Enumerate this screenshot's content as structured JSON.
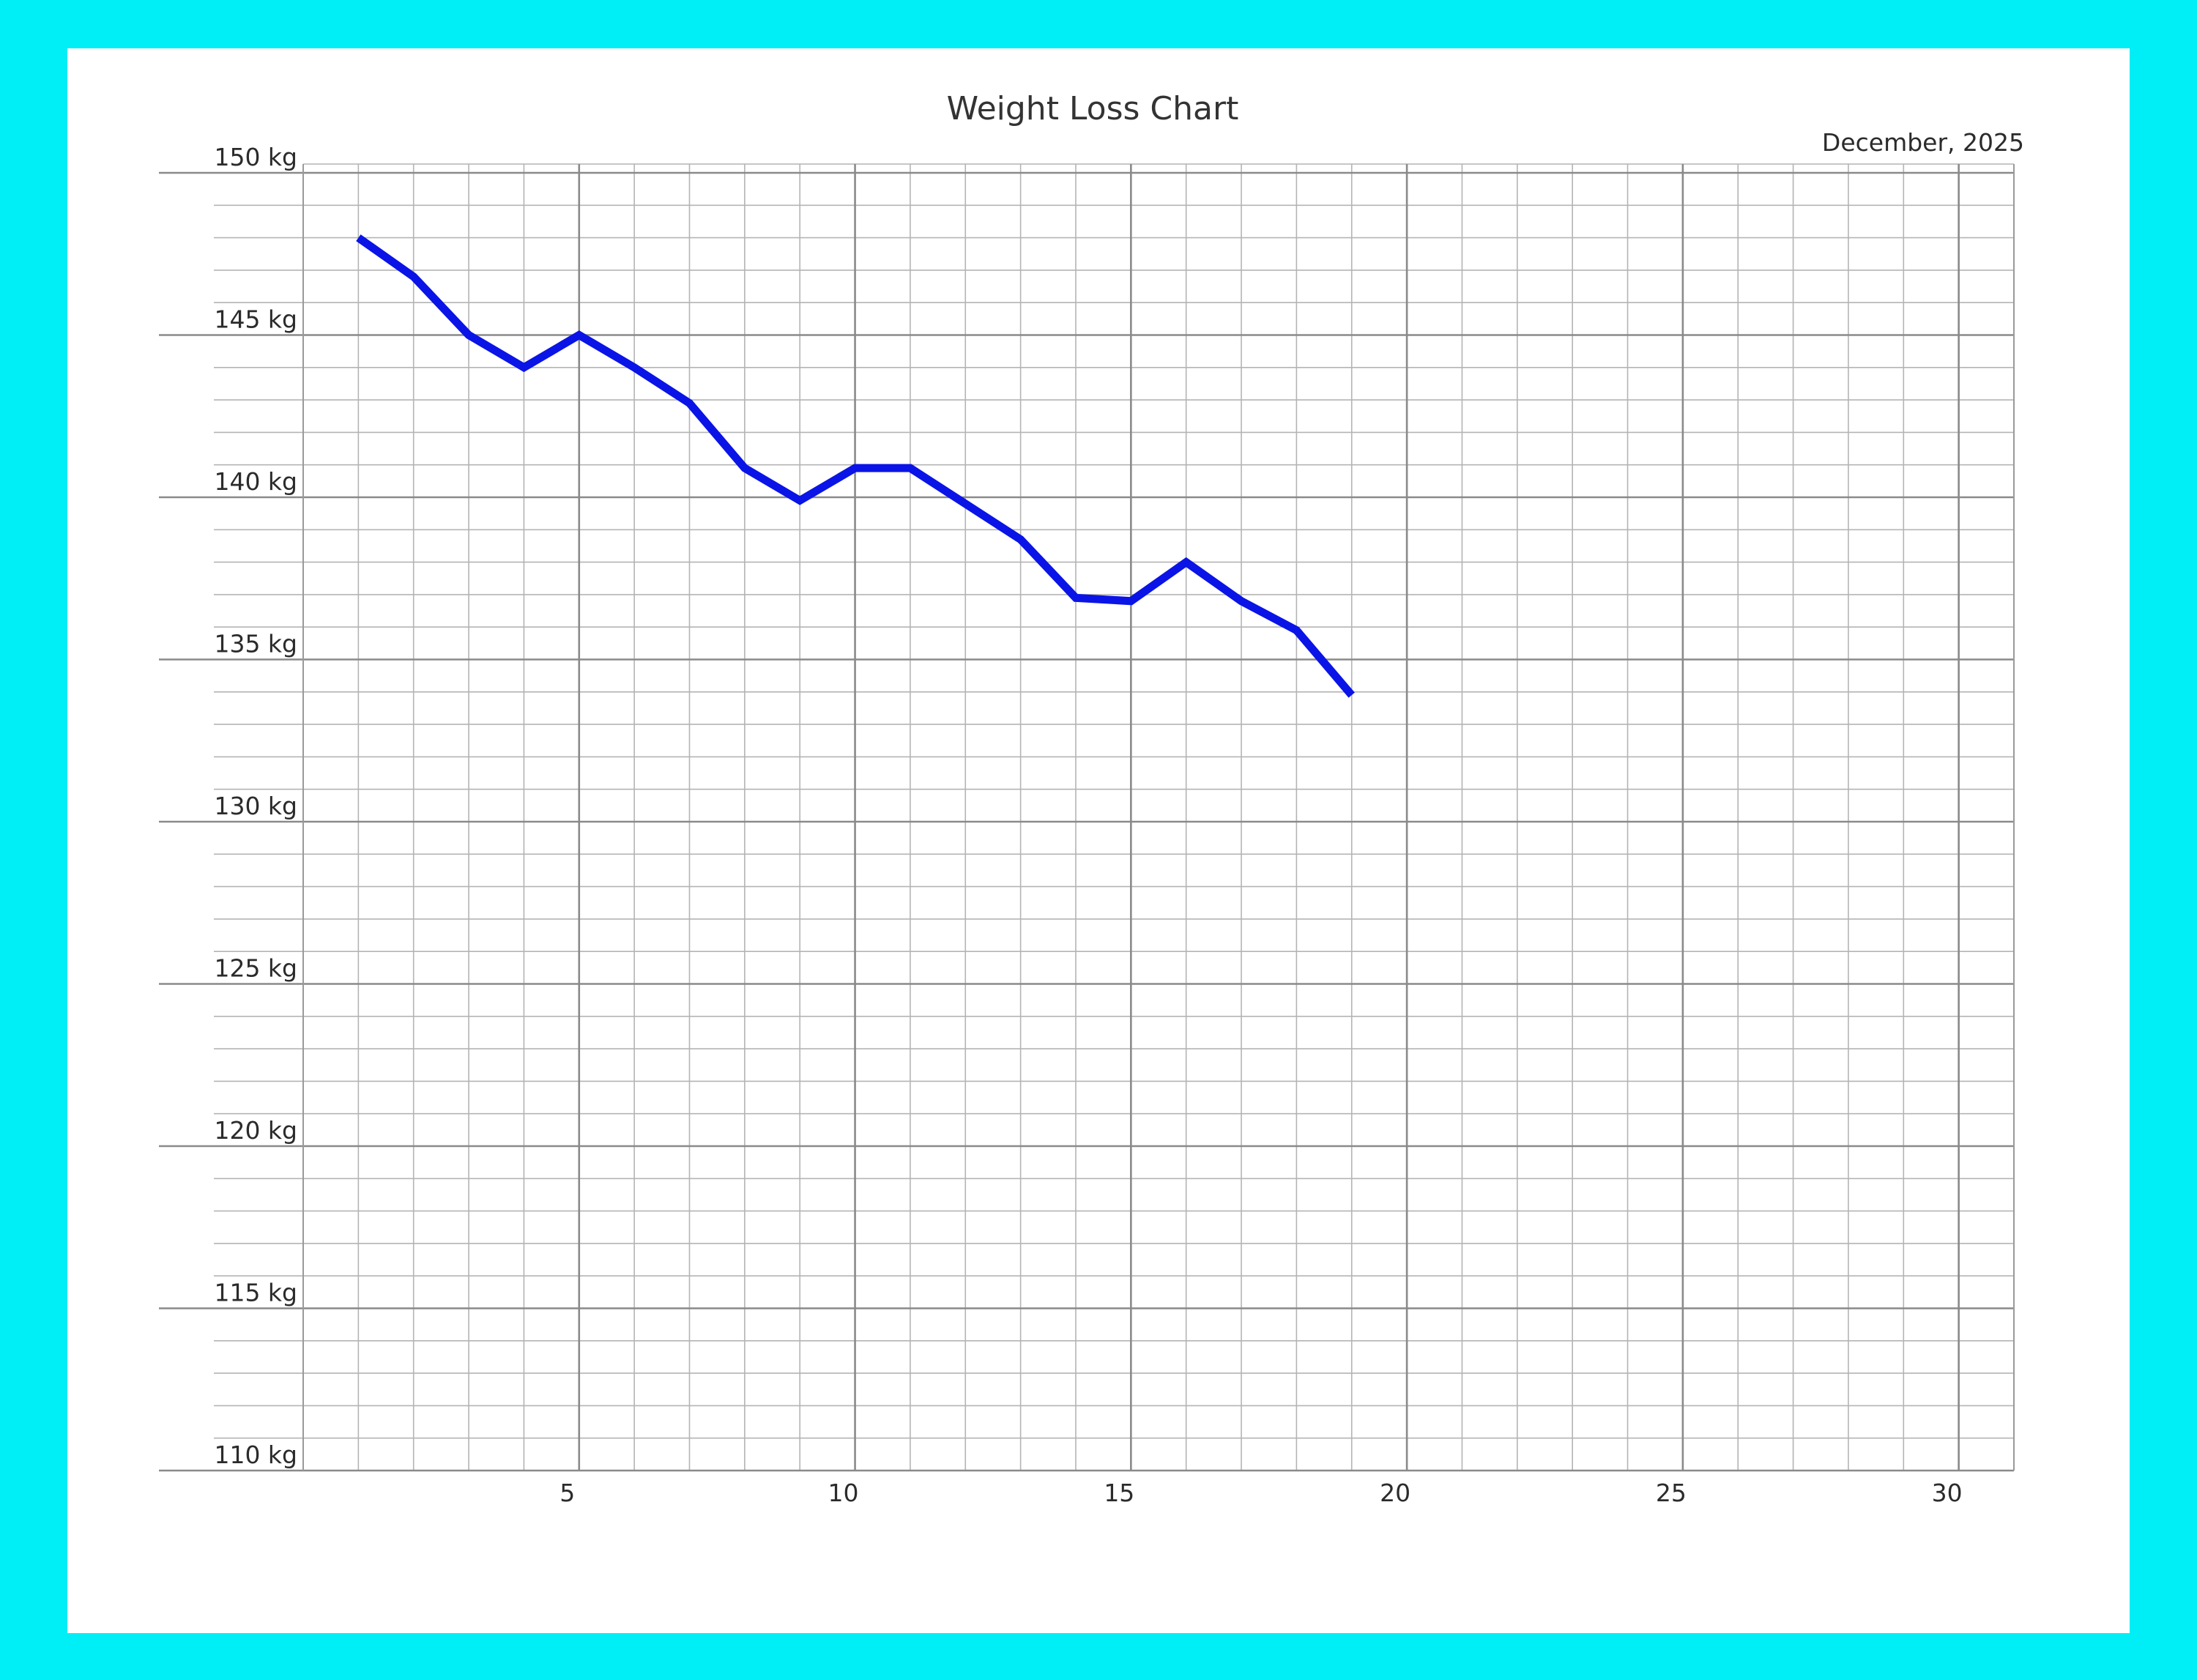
{
  "chart_data": {
    "type": "line",
    "title": "Weight Loss Chart",
    "subtitle": "December, 2025",
    "xlabel": "",
    "ylabel": "",
    "xlim": [
      0,
      31
    ],
    "ylim": [
      110,
      150
    ],
    "x_ticks": [
      {
        "value": 5,
        "label": "5"
      },
      {
        "value": 10,
        "label": "10"
      },
      {
        "value": 15,
        "label": "15"
      },
      {
        "value": 20,
        "label": "20"
      },
      {
        "value": 25,
        "label": "25"
      },
      {
        "value": 30,
        "label": "30"
      }
    ],
    "y_ticks": [
      {
        "value": 150,
        "label": "150 kg"
      },
      {
        "value": 145,
        "label": "145 kg"
      },
      {
        "value": 140,
        "label": "140 kg"
      },
      {
        "value": 135,
        "label": "135 kg"
      },
      {
        "value": 130,
        "label": "130 kg"
      },
      {
        "value": 125,
        "label": "125 kg"
      },
      {
        "value": 120,
        "label": "120 kg"
      },
      {
        "value": 115,
        "label": "115 kg"
      },
      {
        "value": 110,
        "label": "110 kg"
      }
    ],
    "grid": true,
    "series": [
      {
        "color": "#0a14e6",
        "points": [
          {
            "x": 1,
            "y": 148
          },
          {
            "x": 2,
            "y": 146.8
          },
          {
            "x": 3,
            "y": 145
          },
          {
            "x": 4,
            "y": 144
          },
          {
            "x": 5,
            "y": 145
          },
          {
            "x": 6,
            "y": 144
          },
          {
            "x": 7,
            "y": 142.9
          },
          {
            "x": 8,
            "y": 140.9
          },
          {
            "x": 9,
            "y": 139.9
          },
          {
            "x": 10,
            "y": 140.9
          },
          {
            "x": 11,
            "y": 140.9
          },
          {
            "x": 12,
            "y": 139.8
          },
          {
            "x": 13,
            "y": 138.7
          },
          {
            "x": 14,
            "y": 136.9
          },
          {
            "x": 15,
            "y": 136.8
          },
          {
            "x": 16,
            "y": 138
          },
          {
            "x": 17,
            "y": 136.8
          },
          {
            "x": 18,
            "y": 135.9
          },
          {
            "x": 19,
            "y": 133.9
          }
        ]
      }
    ]
  }
}
